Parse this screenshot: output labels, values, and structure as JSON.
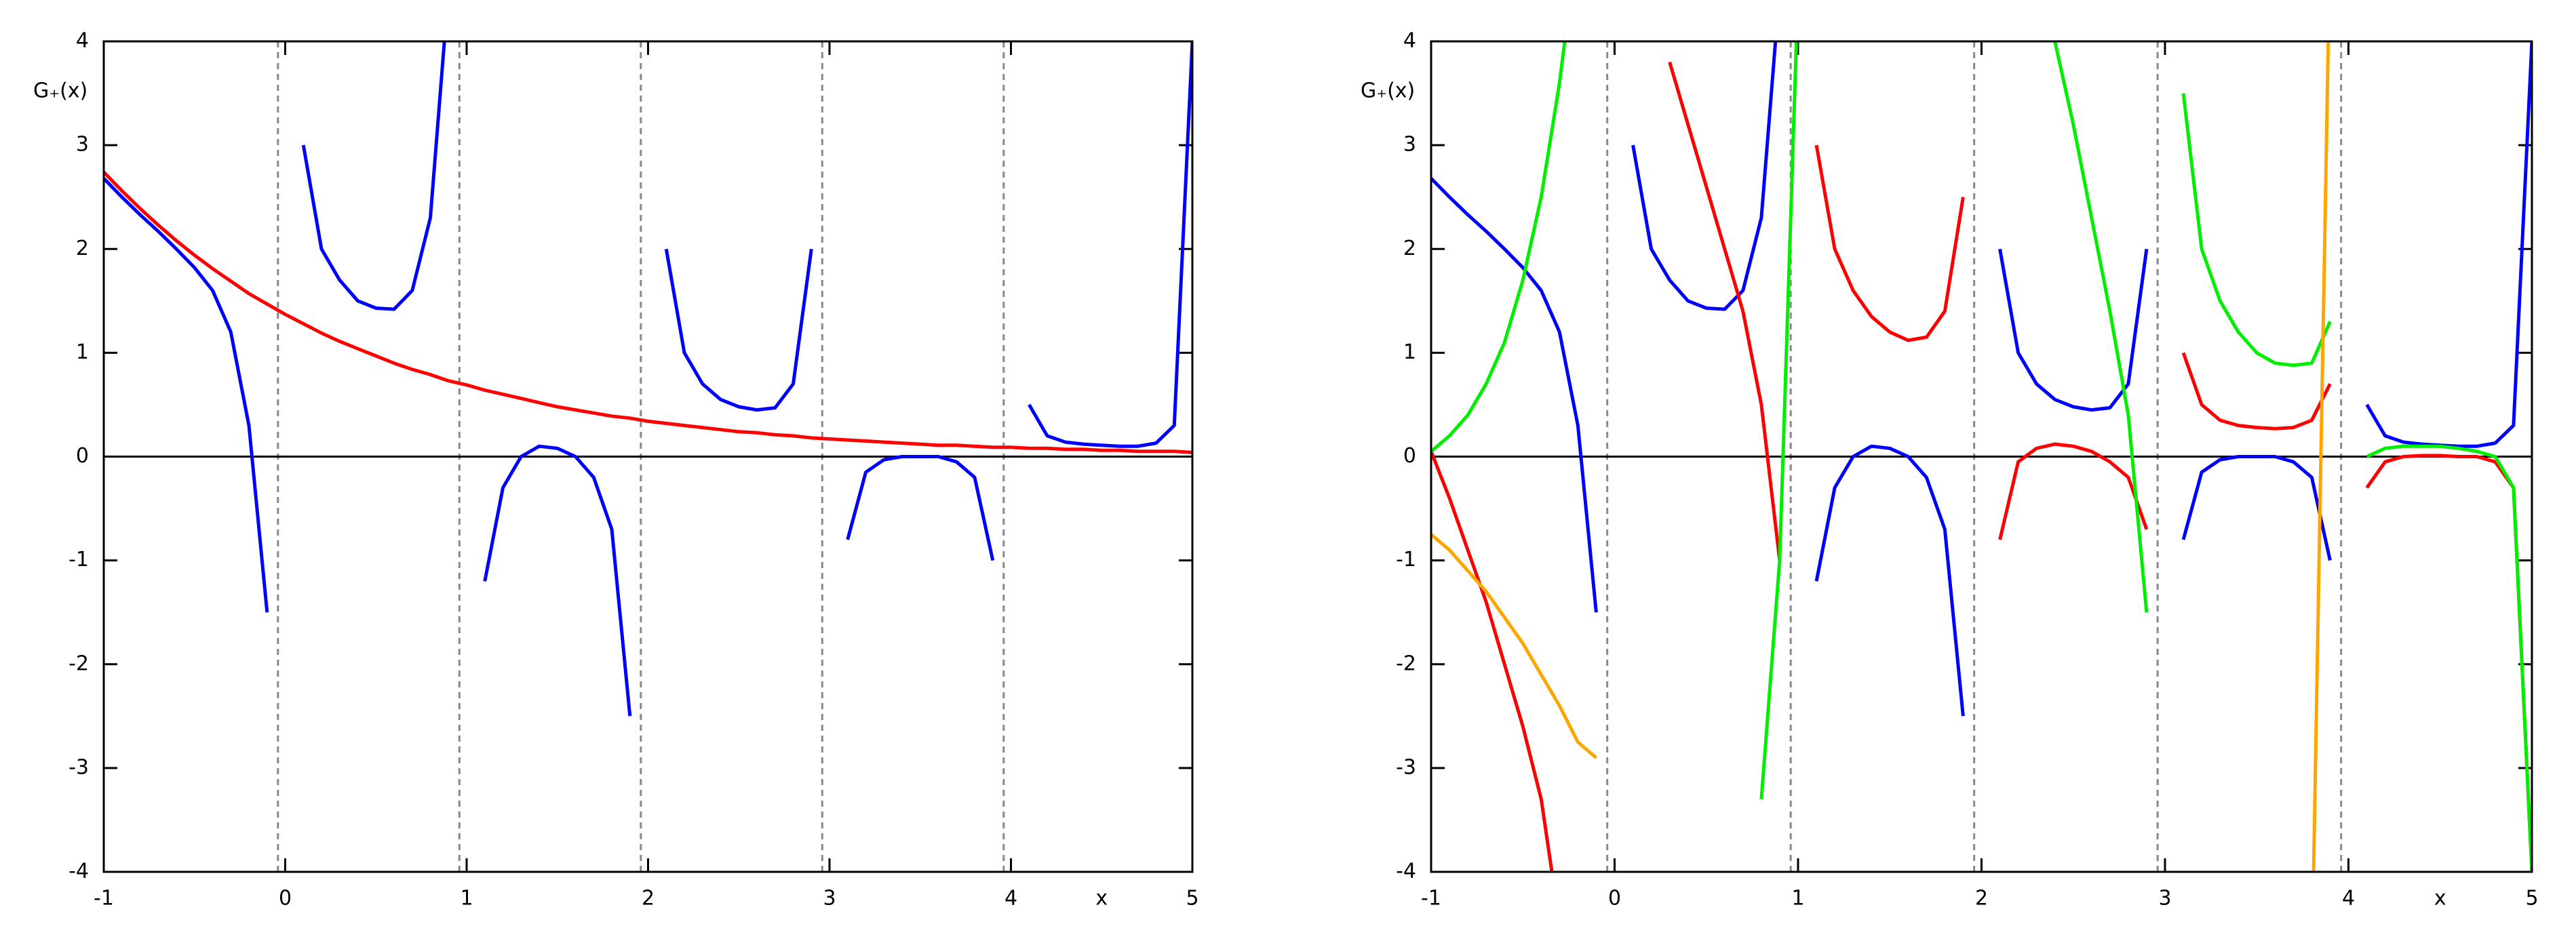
{
  "chart_data": [
    {
      "type": "line",
      "xlabel": "x",
      "ylabel": "G₊(x)",
      "x": [
        -1,
        -0.9,
        -0.8,
        -0.7,
        -0.6,
        -0.5,
        -0.4,
        -0.3,
        -0.2,
        -0.1,
        0,
        0.1,
        0.2,
        0.3,
        0.4,
        0.5,
        0.6,
        0.7,
        0.8,
        0.9,
        1,
        1.1,
        1.2,
        1.3,
        1.4,
        1.5,
        1.6,
        1.7,
        1.8,
        1.9,
        2,
        2.1,
        2.2,
        2.3,
        2.4,
        2.5,
        2.6,
        2.7,
        2.8,
        2.9,
        3,
        3.1,
        3.2,
        3.3,
        3.4,
        3.5,
        3.6,
        3.7,
        3.8,
        3.9,
        4,
        4.1,
        4.2,
        4.3,
        4.4,
        4.5,
        4.6,
        4.7,
        4.8,
        4.9,
        5
      ],
      "xlim": [
        -1,
        5
      ],
      "ylim": [
        -4,
        4
      ],
      "xticks": [
        -1,
        0,
        1,
        2,
        3,
        4,
        5
      ],
      "yticks": [
        -4,
        -3,
        -2,
        -1,
        0,
        1,
        2,
        3,
        4
      ],
      "vlines": [
        -0.04,
        0.96,
        1.96,
        2.96,
        3.96
      ],
      "series": [
        {
          "color": "#ff0000",
          "values": [
            2.74,
            2.56,
            2.39,
            2.23,
            2.08,
            1.94,
            1.81,
            1.69,
            1.57,
            1.47,
            1.37,
            1.28,
            1.19,
            1.11,
            1.04,
            0.97,
            0.9,
            0.84,
            0.79,
            0.73,
            0.69,
            0.64,
            0.6,
            0.56,
            0.52,
            0.48,
            0.45,
            0.42,
            0.39,
            0.37,
            0.34,
            0.32,
            0.3,
            0.28,
            0.26,
            0.24,
            0.23,
            0.21,
            0.2,
            0.18,
            0.17,
            0.16,
            0.15,
            0.14,
            0.13,
            0.12,
            0.11,
            0.11,
            0.1,
            0.09,
            0.09,
            0.08,
            0.08,
            0.07,
            0.07,
            0.06,
            0.06,
            0.05,
            0.05,
            0.05,
            0.04
          ]
        },
        {
          "color": "#0000ff",
          "values": [
            2.68,
            2.5,
            2.33,
            2.17,
            2.0,
            1.82,
            1.6,
            1.2,
            0.3,
            -1.5,
            null,
            3.0,
            2.0,
            1.7,
            1.5,
            1.43,
            1.42,
            1.6,
            2.3,
            4.5,
            null,
            -1.2,
            -0.3,
            0.0,
            0.1,
            0.08,
            0.0,
            -0.2,
            -0.7,
            -2.5,
            null,
            2.0,
            1.0,
            0.7,
            0.55,
            0.48,
            0.45,
            0.47,
            0.7,
            2.0,
            null,
            -0.8,
            -0.15,
            -0.03,
            0.0,
            0.0,
            0.0,
            -0.05,
            -0.2,
            -1.0,
            null,
            0.5,
            0.2,
            0.14,
            0.12,
            0.11,
            0.1,
            0.1,
            0.13,
            0.3,
            4
          ]
        }
      ]
    },
    {
      "type": "line",
      "xlabel": "x",
      "ylabel": "G₊(x)",
      "x": [
        -1,
        -0.9,
        -0.8,
        -0.7,
        -0.6,
        -0.5,
        -0.4,
        -0.3,
        -0.2,
        -0.1,
        0,
        0.1,
        0.2,
        0.3,
        0.4,
        0.5,
        0.6,
        0.7,
        0.8,
        0.9,
        1,
        1.1,
        1.2,
        1.3,
        1.4,
        1.5,
        1.6,
        1.7,
        1.8,
        1.9,
        2,
        2.1,
        2.2,
        2.3,
        2.4,
        2.5,
        2.6,
        2.7,
        2.8,
        2.9,
        3,
        3.1,
        3.2,
        3.3,
        3.4,
        3.5,
        3.6,
        3.7,
        3.8,
        3.9,
        4,
        4.1,
        4.2,
        4.3,
        4.4,
        4.5,
        4.6,
        4.7,
        4.8,
        4.9,
        5
      ],
      "xlim": [
        -1,
        5
      ],
      "ylim": [
        -4,
        4
      ],
      "xticks": [
        -1,
        0,
        1,
        2,
        3,
        4,
        5
      ],
      "yticks": [
        -4,
        -3,
        -2,
        -1,
        0,
        1,
        2,
        3,
        4
      ],
      "vlines": [
        -0.04,
        0.96,
        1.96,
        2.96,
        3.96
      ],
      "series": [
        {
          "color": "#0000ff",
          "values": [
            2.68,
            2.5,
            2.33,
            2.17,
            2.0,
            1.82,
            1.6,
            1.2,
            0.3,
            -1.5,
            null,
            3.0,
            2.0,
            1.7,
            1.5,
            1.43,
            1.42,
            1.6,
            2.3,
            4.5,
            null,
            -1.2,
            -0.3,
            0.0,
            0.1,
            0.08,
            0.0,
            -0.2,
            -0.7,
            -2.5,
            null,
            2.0,
            1.0,
            0.7,
            0.55,
            0.48,
            0.45,
            0.47,
            0.7,
            2.0,
            null,
            -0.8,
            -0.15,
            -0.03,
            0.0,
            0.0,
            0.0,
            -0.05,
            -0.2,
            -1.0,
            null,
            0.5,
            0.2,
            0.14,
            0.12,
            0.11,
            0.1,
            0.1,
            0.13,
            0.3,
            4
          ]
        },
        {
          "color": "#ff0000",
          "values": [
            0.05,
            -0.4,
            -0.9,
            -1.4,
            -2.0,
            -2.6,
            -3.3,
            -4.5,
            null,
            null,
            null,
            null,
            null,
            3.8,
            3.2,
            2.6,
            2.0,
            1.4,
            0.5,
            -1.0,
            null,
            3.0,
            2.0,
            1.6,
            1.35,
            1.2,
            1.12,
            1.15,
            1.4,
            2.5,
            null,
            -0.8,
            -0.05,
            0.08,
            0.12,
            0.1,
            0.05,
            -0.05,
            -0.2,
            -0.7,
            null,
            1.0,
            0.5,
            0.35,
            0.3,
            0.28,
            0.27,
            0.28,
            0.35,
            0.7,
            null,
            -0.3,
            -0.05,
            0.0,
            0.01,
            0.01,
            0.0,
            0.0,
            -0.05,
            -0.3,
            -4
          ]
        },
        {
          "color": "#00ee00",
          "values": [
            0.05,
            0.2,
            0.4,
            0.7,
            1.1,
            1.7,
            2.5,
            3.6,
            5,
            null,
            null,
            null,
            null,
            null,
            null,
            null,
            null,
            null,
            -3.3,
            -1.0,
            4.5,
            null,
            null,
            null,
            null,
            null,
            null,
            null,
            null,
            null,
            null,
            null,
            null,
            5,
            4.0,
            3.2,
            2.3,
            1.4,
            0.4,
            -1.5,
            null,
            3.5,
            2.0,
            1.5,
            1.2,
            1.0,
            0.9,
            0.88,
            0.9,
            1.3,
            null,
            0.0,
            0.08,
            0.1,
            0.1,
            0.1,
            0.08,
            0.05,
            0.0,
            -0.3,
            -4
          ]
        },
        {
          "color": "#ffa500",
          "values": [
            -0.75,
            -0.9,
            -1.1,
            -1.3,
            -1.55,
            -1.8,
            -2.1,
            -2.4,
            -2.75,
            -2.9,
            null,
            null,
            null,
            null,
            null,
            null,
            null,
            null,
            null,
            null,
            null,
            null,
            null,
            null,
            null,
            null,
            null,
            null,
            null,
            null,
            null,
            null,
            null,
            null,
            null,
            null,
            null,
            null,
            null,
            null,
            null,
            null,
            null,
            null,
            null,
            null,
            null,
            null,
            -5,
            5,
            null,
            null,
            null,
            null,
            null,
            null,
            null,
            null,
            null,
            null,
            null
          ]
        }
      ]
    }
  ]
}
